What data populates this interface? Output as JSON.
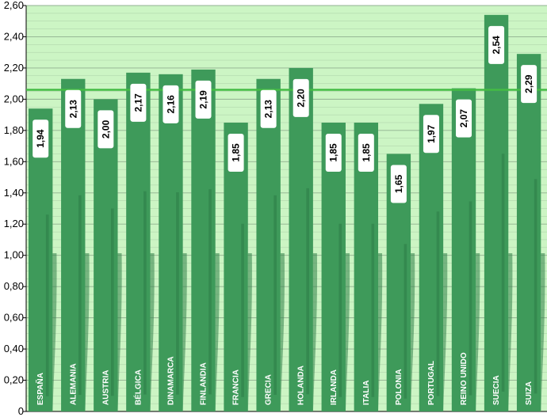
{
  "chart_data": {
    "type": "bar",
    "title": "",
    "xlabel": "",
    "ylabel": "",
    "categories": [
      "ESPAÑA",
      "ALEMANIA",
      "AUSTRIA",
      "BÉLGICA",
      "DINAMARCA",
      "FINLANDIA",
      "FRANCIA",
      "GRECIA",
      "HOLANDA",
      "IRLANDA",
      "ITALIA",
      "POLONIA",
      "PORTUGAL",
      "REINO UNIDO",
      "SUECIA",
      "SUIZA"
    ],
    "values": [
      1.94,
      2.13,
      2.0,
      2.17,
      2.16,
      2.19,
      1.85,
      2.13,
      2.2,
      1.85,
      1.85,
      1.65,
      1.97,
      2.07,
      2.54,
      2.29
    ],
    "value_labels": [
      "1,94",
      "2,13",
      "2,00",
      "2,17",
      "2,16",
      "2,19",
      "1,85",
      "2,13",
      "2,20",
      "1,85",
      "1,85",
      "1,65",
      "1,97",
      "2,07",
      "2,54",
      "2,29"
    ],
    "reference_line": 2.06,
    "ylim": [
      0,
      2.6
    ],
    "yticks": [
      0,
      0.2,
      0.4,
      0.6,
      0.8,
      1.0,
      1.2,
      1.4,
      1.6,
      1.8,
      2.0,
      2.2,
      2.4,
      2.6
    ],
    "ytick_labels": [
      "0",
      "0,20",
      "0,40",
      "0,60",
      "0,80",
      "1,00",
      "1,20",
      "1,40",
      "1,60",
      "1,80",
      "2,00",
      "2,20",
      "2,40",
      "2,60"
    ],
    "grid": true,
    "legend": "none",
    "colors": {
      "plot_background": "#ccf5c4",
      "bar": "#3e9a5a",
      "bar_dark": "#2f7f48",
      "reference_line": "#44bb44",
      "gridline": "#8aa88a"
    }
  }
}
